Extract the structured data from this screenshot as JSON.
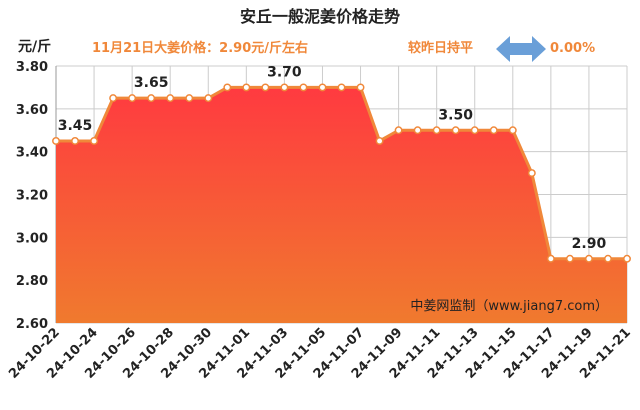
{
  "title": "安丘一般泥姜价格走势",
  "unit_label": "元/斤",
  "price_note": "11月21日大姜价格：2.90元/斤左右",
  "change_label": "较昨日持平",
  "change_value": "0.00%",
  "watermark": "中姜网监制（www.jiang7.com）",
  "colors": {
    "line": "#f0883a",
    "fill_top": "#ff3a40",
    "fill_bottom": "#f07a2e",
    "accent_text": "#f0883a",
    "arrow": "#6a9fd8",
    "grid": "#cccccc"
  },
  "chart_data": {
    "type": "area",
    "title": "安丘一般泥姜价格走势",
    "ylabel": "元/斤",
    "ylim": [
      2.6,
      3.8
    ],
    "yticks": [
      "2.60",
      "2.80",
      "3.00",
      "3.20",
      "3.40",
      "3.60",
      "3.80"
    ],
    "grid": true,
    "x": [
      "24-10-22",
      "24-10-23",
      "24-10-24",
      "24-10-25",
      "24-10-26",
      "24-10-27",
      "24-10-28",
      "24-10-29",
      "24-10-30",
      "24-10-31",
      "24-11-01",
      "24-11-02",
      "24-11-03",
      "24-11-04",
      "24-11-05",
      "24-11-06",
      "24-11-07",
      "24-11-08",
      "24-11-09",
      "24-11-10",
      "24-11-11",
      "24-11-12",
      "24-11-13",
      "24-11-14",
      "24-11-15",
      "24-11-16",
      "24-11-17",
      "24-11-18",
      "24-11-19",
      "24-11-20",
      "24-11-21"
    ],
    "xticks": [
      "24-10-22",
      "24-10-24",
      "24-10-26",
      "24-10-28",
      "24-10-30",
      "24-11-01",
      "24-11-03",
      "24-11-05",
      "24-11-07",
      "24-11-09",
      "24-11-11",
      "24-11-13",
      "24-11-15",
      "24-11-17",
      "24-11-19",
      "24-11-21"
    ],
    "values": [
      3.45,
      3.45,
      3.45,
      3.65,
      3.65,
      3.65,
      3.65,
      3.65,
      3.65,
      3.7,
      3.7,
      3.7,
      3.7,
      3.7,
      3.7,
      3.7,
      3.7,
      3.45,
      3.5,
      3.5,
      3.5,
      3.5,
      3.5,
      3.5,
      3.5,
      3.3,
      2.9,
      2.9,
      2.9,
      2.9,
      2.9
    ],
    "annotations": [
      {
        "index": 1,
        "text": "3.45"
      },
      {
        "index": 5,
        "text": "3.65"
      },
      {
        "index": 12,
        "text": "3.70"
      },
      {
        "index": 21,
        "text": "3.50"
      },
      {
        "index": 28,
        "text": "2.90"
      }
    ]
  }
}
